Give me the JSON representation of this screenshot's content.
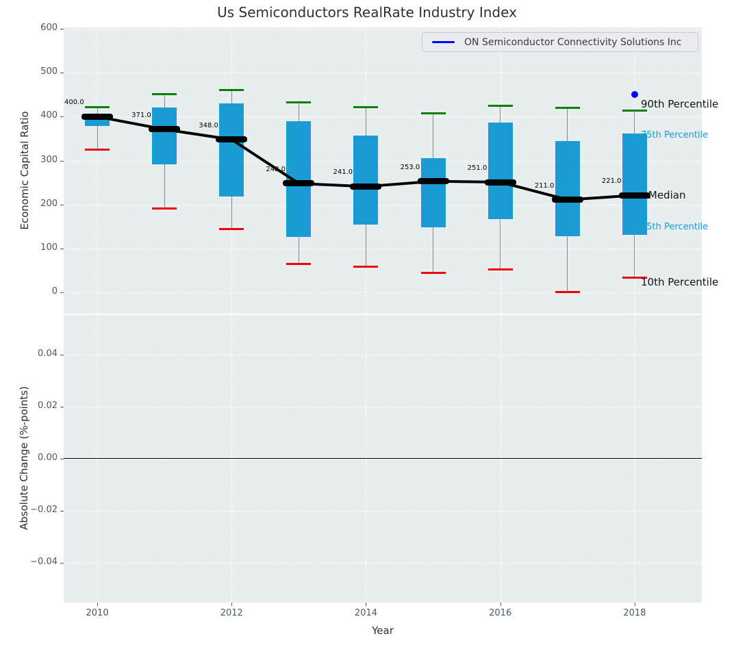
{
  "title": "Us Semiconductors RealRate Industry Index",
  "legend": {
    "label": "ON Semiconductor Connectivity Solutions Inc",
    "line_color": "#0000ff"
  },
  "colors": {
    "box_fill": "#1a9bd1",
    "p90_cap": "#008000",
    "p10_cap": "#ee0000",
    "median": "#000000",
    "company": "#0000ff",
    "plot_bg": "#e8edef",
    "tick_text": "#46586a"
  },
  "chart_data": [
    {
      "type": "box",
      "title": "Us Semiconductors RealRate Industry Index",
      "xlabel": "Year",
      "ylabel": "Economic Capital Ratio",
      "ylim": [
        -48,
        603
      ],
      "xlim": [
        2009.5,
        2019.0
      ],
      "grid": true,
      "yticks": [
        "600",
        "500",
        "400",
        "300",
        "200",
        "100",
        "0"
      ],
      "ytick_values": [
        600,
        500,
        400,
        300,
        200,
        100,
        0
      ],
      "xticks": [
        "2010",
        "2012",
        "2014",
        "2016",
        "2018"
      ],
      "xtick_values": [
        2010,
        2012,
        2014,
        2016,
        2018
      ],
      "years": [
        2010,
        2011,
        2012,
        2013,
        2014,
        2015,
        2016,
        2017,
        2018
      ],
      "series": [
        {
          "name": "10th Percentile",
          "values": [
            325,
            191,
            144,
            65,
            59,
            44,
            52,
            1,
            33
          ]
        },
        {
          "name": "25th Percentile",
          "values": [
            379,
            291,
            219,
            127,
            155,
            148,
            167,
            128,
            131
          ]
        },
        {
          "name": "Median",
          "values": [
            400,
            371,
            348,
            248,
            241,
            253,
            251,
            211,
            221
          ]
        },
        {
          "name": "75th Percentile",
          "values": [
            404,
            421,
            430,
            389,
            357,
            306,
            386,
            345,
            362
          ]
        },
        {
          "name": "90th Percentile",
          "values": [
            421,
            451,
            461,
            432,
            421,
            407,
            424,
            420,
            413
          ]
        }
      ],
      "median_labels": [
        "400.0",
        "371.0",
        "348.0",
        "248.0",
        "241.0",
        "253.0",
        "251.0",
        "211.0",
        "221.0"
      ],
      "company_point": {
        "name": "ON Semiconductor Connectivity Solutions Inc",
        "x": 2018,
        "y": 451
      },
      "right_labels": [
        {
          "text": "90th Percentile",
          "value": 428,
          "style": "big"
        },
        {
          "text": "75th Percentile",
          "value": 355,
          "style": "teal"
        },
        {
          "text": "Median",
          "value": 222,
          "style": "big"
        },
        {
          "text": "25th Percentile",
          "value": 146,
          "style": "teal"
        },
        {
          "text": "10th Percentile",
          "value": 23,
          "style": "big"
        }
      ],
      "legend_entry": "ON Semiconductor Connectivity Solutions Inc"
    },
    {
      "type": "line",
      "title": "",
      "xlabel": "Year",
      "ylabel": "Absolute Change (%-points)",
      "ylim": [
        -0.0554,
        0.0554
      ],
      "grid": true,
      "yticks": [
        "0.04",
        "0.02",
        "0.00",
        "−0.02",
        "−0.04"
      ],
      "ytick_values": [
        0.04,
        0.02,
        0.0,
        -0.02,
        -0.04
      ],
      "xticks": [
        "2010",
        "2012",
        "2014",
        "2016",
        "2018"
      ],
      "xtick_values": [
        2010,
        2012,
        2014,
        2016,
        2018
      ],
      "series": [],
      "zero_line": true
    }
  ],
  "axes": {
    "top_ylabel": "Economic Capital Ratio",
    "bottom_ylabel": "Absolute Change (%-points)",
    "xlabel": "Year"
  }
}
